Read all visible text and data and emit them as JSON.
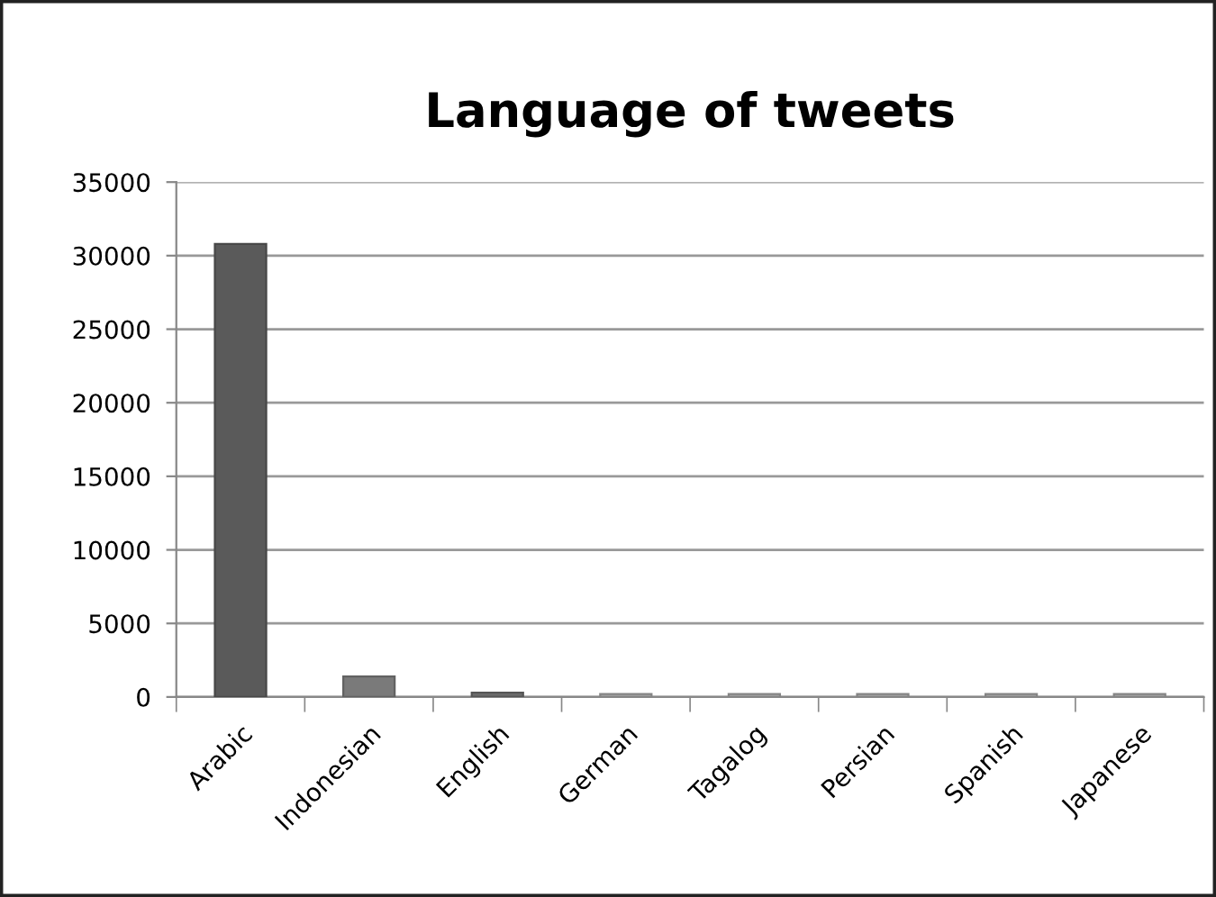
{
  "chart_data": {
    "type": "bar",
    "title": "Language of tweets",
    "categories": [
      "Arabic",
      "Indonesian",
      "English",
      "German",
      "Tagalog",
      "Persian",
      "Spanish",
      "Japanese"
    ],
    "values": [
      30800,
      1400,
      300,
      200,
      200,
      200,
      200,
      200
    ],
    "colors": [
      "#5a5a5a",
      "#7a7a7a",
      "#6a6a6a",
      "#a6a6a6",
      "#a6a6a6",
      "#a6a6a6",
      "#a6a6a6",
      "#a6a6a6"
    ],
    "ylim": [
      0,
      35000
    ],
    "yticks": [
      0,
      5000,
      10000,
      15000,
      20000,
      25000,
      30000,
      35000
    ],
    "grid": "y",
    "legend": false
  }
}
